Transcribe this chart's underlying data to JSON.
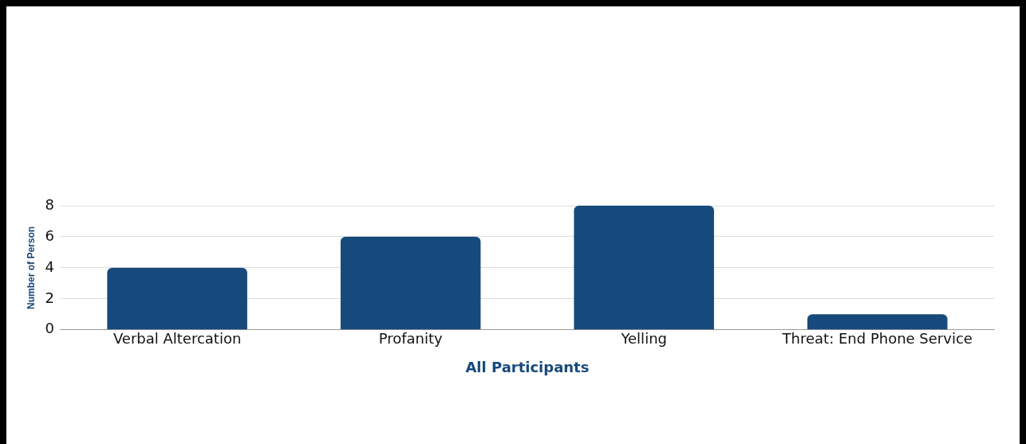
{
  "chart_data": {
    "type": "bar",
    "xlabel": "All Participants",
    "ylabel": "Number of Person",
    "categories": [
      "Verbal Altercation",
      "Profanity",
      "Yelling",
      "Threat: End Phone Service"
    ],
    "values": [
      4,
      6,
      8,
      1
    ],
    "color": "#174a7c",
    "ylim": [
      0,
      8
    ],
    "yticks": [
      0,
      2,
      4,
      6,
      8
    ],
    "grid": "y",
    "legend": false
  }
}
